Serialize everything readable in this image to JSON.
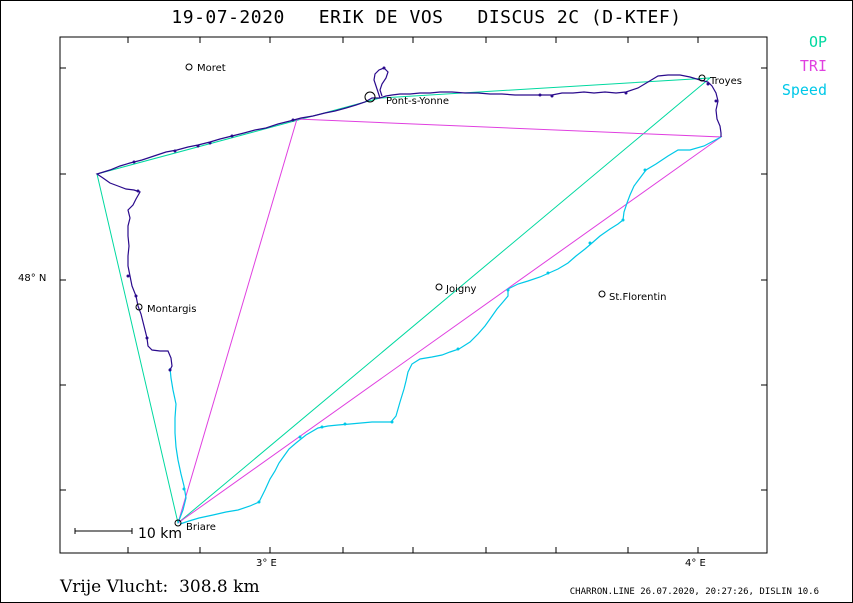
{
  "title": "19-07-2020   ERIK DE VOS   DISCUS 2C (D-KTEF)",
  "legend": [
    {
      "label": "OP",
      "color": "#00d9a0"
    },
    {
      "label": "TRI",
      "color": "#e040e0"
    },
    {
      "label": "Speed",
      "color": "#00c8e8"
    }
  ],
  "axes": {
    "lat_label": "48° N",
    "lon_labels": [
      "3° E",
      "4° E"
    ]
  },
  "places": [
    {
      "name": "Moret"
    },
    {
      "name": "Pont-s-Yonne"
    },
    {
      "name": "Troyes"
    },
    {
      "name": "Joigny"
    },
    {
      "name": "St.Florentin"
    },
    {
      "name": "Montargis"
    },
    {
      "name": "Briare"
    }
  ],
  "scale_bar": {
    "label": "10 km"
  },
  "footer": {
    "distance_text": "Vrije Vlucht:  308.8 km",
    "credit": "CHARRON.LINE 26.07.2020, 20:27:26, DISLIN 10.6"
  },
  "colors": {
    "track": "#2a0a8c",
    "op": "#00d9a0",
    "tri": "#e040e0",
    "speed": "#00c8e8"
  }
}
